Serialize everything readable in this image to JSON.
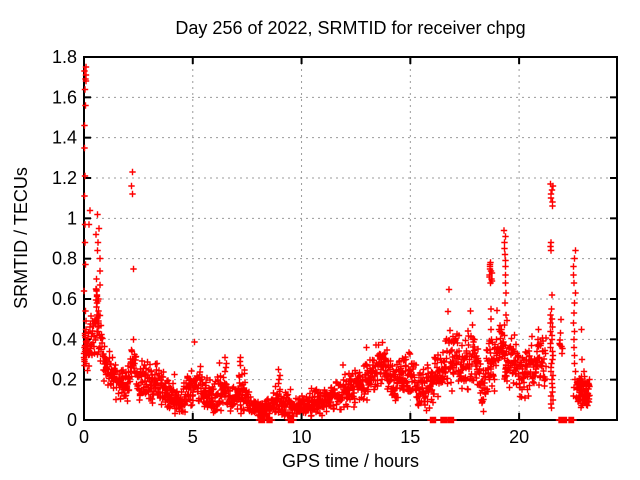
{
  "chart_data": {
    "type": "scatter",
    "title": "Day 256 of 2022, SRMTID for receiver chpg",
    "xlabel": "GPS time / hours",
    "ylabel": "SRMTID / TECUs",
    "xlim": [
      0,
      24.5
    ],
    "ylim": [
      0,
      1.8
    ],
    "xticks": [
      {
        "v": 0,
        "label": "0"
      },
      {
        "v": 5,
        "label": "5"
      },
      {
        "v": 10,
        "label": "10"
      },
      {
        "v": 15,
        "label": "15"
      },
      {
        "v": 20,
        "label": "20"
      }
    ],
    "yticks": [
      {
        "v": 0,
        "label": "0"
      },
      {
        "v": 0.2,
        "label": "0.2"
      },
      {
        "v": 0.4,
        "label": "0.4"
      },
      {
        "v": 0.6,
        "label": "0.6"
      },
      {
        "v": 0.8,
        "label": "0.8"
      },
      {
        "v": 1,
        "label": "1"
      },
      {
        "v": 1.2,
        "label": "1.2"
      },
      {
        "v": 1.4,
        "label": "1.4"
      },
      {
        "v": 1.6,
        "label": "1.6"
      },
      {
        "v": 1.8,
        "label": "1.8"
      }
    ],
    "grid": true,
    "grid_color": "#9a9a9a",
    "marker": "plus",
    "marker_color": "#ff0000",
    "series_name": "SRMTID",
    "band_segments": [
      {
        "dt": 0.012,
        "profile": [
          [
            0.1,
            0.36,
            0.1
          ],
          [
            0.3,
            0.38,
            0.12
          ],
          [
            0.55,
            0.5,
            0.15
          ],
          [
            0.75,
            0.42,
            0.14
          ],
          [
            0.95,
            0.28,
            0.09
          ],
          [
            1.3,
            0.21,
            0.07
          ],
          [
            1.7,
            0.18,
            0.06
          ],
          [
            2.05,
            0.17,
            0.06
          ],
          [
            2.25,
            0.3,
            0.1
          ],
          [
            2.5,
            0.2,
            0.08
          ],
          [
            3.0,
            0.19,
            0.08
          ],
          [
            3.4,
            0.19,
            0.08
          ],
          [
            3.9,
            0.13,
            0.06
          ],
          [
            4.4,
            0.08,
            0.04
          ],
          [
            4.9,
            0.15,
            0.08
          ],
          [
            5.3,
            0.17,
            0.08
          ],
          [
            5.8,
            0.1,
            0.05
          ],
          [
            6.4,
            0.14,
            0.08
          ],
          [
            6.8,
            0.09,
            0.05
          ],
          [
            7.2,
            0.14,
            0.09
          ],
          [
            7.6,
            0.08,
            0.04
          ],
          [
            8.1,
            0.05,
            0.03
          ],
          [
            8.6,
            0.06,
            0.04
          ],
          [
            9.0,
            0.11,
            0.07
          ],
          [
            9.5,
            0.06,
            0.04
          ],
          [
            10.0,
            0.07,
            0.04
          ],
          [
            10.6,
            0.08,
            0.05
          ],
          [
            11.2,
            0.1,
            0.05
          ],
          [
            11.8,
            0.12,
            0.06
          ],
          [
            12.4,
            0.16,
            0.07
          ],
          [
            13.0,
            0.2,
            0.08
          ],
          [
            13.6,
            0.28,
            0.09
          ],
          [
            13.85,
            0.29,
            0.08
          ],
          [
            14.15,
            0.17,
            0.08
          ],
          [
            14.6,
            0.2,
            0.08
          ],
          [
            15.0,
            0.22,
            0.08
          ],
          [
            15.4,
            0.13,
            0.07
          ],
          [
            15.8,
            0.17,
            0.09
          ],
          [
            16.2,
            0.22,
            0.1
          ],
          [
            16.6,
            0.27,
            0.11
          ],
          [
            16.95,
            0.32,
            0.12
          ],
          [
            17.3,
            0.28,
            0.1
          ],
          [
            17.7,
            0.3,
            0.11
          ],
          [
            18.05,
            0.31,
            0.1
          ],
          [
            18.3,
            0.12,
            0.07
          ],
          [
            18.6,
            0.26,
            0.12
          ],
          [
            19.0,
            0.3,
            0.13
          ],
          [
            19.35,
            0.33,
            0.13
          ],
          [
            19.7,
            0.28,
            0.1
          ],
          [
            20.2,
            0.22,
            0.09
          ],
          [
            20.6,
            0.27,
            0.11
          ],
          [
            21.0,
            0.29,
            0.11
          ],
          [
            21.25,
            0.24,
            0.1
          ]
        ]
      },
      {
        "dt": 0.02,
        "profile": [
          [
            21.85,
            0.38,
            0.1
          ],
          [
            22.0,
            0.33,
            0.1
          ]
        ]
      },
      {
        "dt": 0.008,
        "profile": [
          [
            22.65,
            0.14,
            0.07
          ],
          [
            23.0,
            0.13,
            0.07
          ],
          [
            23.25,
            0.12,
            0.06
          ]
        ]
      }
    ],
    "spike_columns": [
      {
        "x": 0.05,
        "dx": 0.05,
        "values": [
          1.75,
          1.73,
          1.71,
          1.69,
          1.68,
          1.64,
          1.56,
          1.46,
          1.35,
          1.21,
          1.11,
          0.97,
          0.88,
          0.77,
          0.64,
          0.54,
          0.49,
          0.45,
          0.43,
          0.42,
          0.41,
          0.39,
          0.37,
          0.36,
          0.35,
          0.34,
          0.33,
          0.32,
          0.31,
          0.3,
          0.29,
          0.28,
          0.27
        ]
      },
      {
        "x": 0.65,
        "dx": 0.1,
        "values": [
          1.02,
          0.95,
          0.92,
          0.88,
          0.84,
          0.8,
          0.74,
          0.7,
          0.67,
          0.64,
          0.62,
          0.6,
          0.58,
          0.56,
          0.54,
          0.52,
          0.5,
          0.48,
          0.46,
          0.44
        ]
      },
      {
        "x": 2.22,
        "dx": 0.06,
        "values": [
          1.23,
          1.16,
          1.12,
          0.75
        ]
      },
      {
        "x": 6.5,
        "dx": 0.05,
        "values": [
          0.31,
          0.28,
          0.26,
          0.24
        ]
      },
      {
        "x": 7.2,
        "dx": 0.05,
        "values": [
          0.31,
          0.29,
          0.27
        ]
      },
      {
        "x": 9.0,
        "dx": 0.1,
        "values": [
          0.25,
          0.22,
          0.2
        ]
      },
      {
        "x": 18.7,
        "dx": 0.06,
        "values": [
          0.78,
          0.77,
          0.76,
          0.75,
          0.74,
          0.73,
          0.72,
          0.71,
          0.7,
          0.69,
          0.68,
          0.55,
          0.5,
          0.45,
          0.4,
          0.35,
          0.3
        ]
      },
      {
        "x": 19.35,
        "dx": 0.06,
        "values": [
          0.94,
          0.91,
          0.88,
          0.85,
          0.82,
          0.79,
          0.76,
          0.72,
          0.68,
          0.63,
          0.58,
          0.52,
          0.47,
          0.42,
          0.37,
          0.32,
          0.27,
          0.22
        ]
      },
      {
        "x": 21.5,
        "dx": 0.07,
        "values": [
          1.17,
          1.16,
          1.14,
          1.12,
          1.1,
          1.08,
          1.06,
          0.88,
          0.86,
          0.84,
          0.62,
          0.55,
          0.52,
          0.5,
          0.48,
          0.46,
          0.44,
          0.42,
          0.4,
          0.38,
          0.36,
          0.34,
          0.32,
          0.3,
          0.28,
          0.26,
          0.24,
          0.22,
          0.2,
          0.18,
          0.16,
          0.14,
          0.12,
          0.1,
          0.08,
          0.06
        ]
      },
      {
        "x": 22.55,
        "dx": 0.06,
        "values": [
          0.84,
          0.8,
          0.76,
          0.72,
          0.68,
          0.63,
          0.58,
          0.53,
          0.48,
          0.44,
          0.4,
          0.36,
          0.32,
          0.28,
          0.24,
          0.2,
          0.16,
          0.12
        ]
      },
      {
        "x": 22.87,
        "dx": 0.04,
        "values": [
          0.45,
          0.3
        ]
      }
    ],
    "extra_points": [
      [
        0.22,
        0.97
      ],
      [
        0.28,
        1.04
      ],
      [
        17.85,
        0.47
      ],
      [
        20.9,
        0.45
      ]
    ],
    "zero_runs": [
      {
        "from": 8.05,
        "to": 8.3,
        "n": 16
      },
      {
        "from": 8.42,
        "to": 8.65,
        "n": 14
      },
      {
        "from": 9.4,
        "to": 9.62,
        "n": 14
      },
      {
        "from": 15.92,
        "to": 16.15,
        "n": 16
      },
      {
        "from": 16.4,
        "to": 16.66,
        "n": 18
      },
      {
        "from": 16.72,
        "to": 16.98,
        "n": 18
      },
      {
        "from": 21.82,
        "to": 22.18,
        "n": 26
      },
      {
        "from": 22.3,
        "to": 22.5,
        "n": 14
      }
    ]
  }
}
